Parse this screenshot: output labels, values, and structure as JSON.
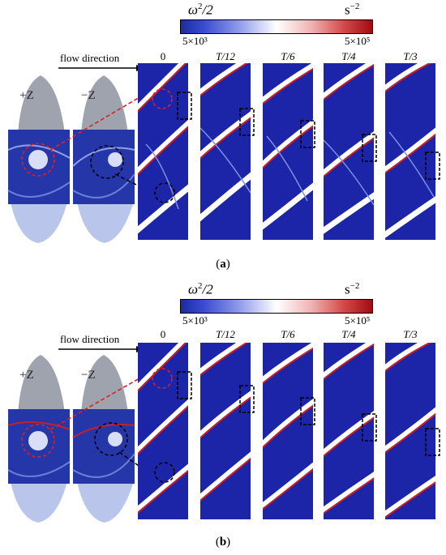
{
  "colorbar": {
    "quantity": "ω²/2",
    "quantity_base": "ω",
    "quantity_exp": "2",
    "quantity_rest": "/2",
    "unit_base": "s",
    "unit_exp": "−2",
    "min_label": "5×10³",
    "max_label": "5×10⁵",
    "colors": [
      "#1c2b9e",
      "#ffffff",
      "#a00c12"
    ]
  },
  "flow_label": "flow direction",
  "time_labels": [
    "0",
    "T/12",
    "T/6",
    "T/4",
    "T/3"
  ],
  "views": {
    "plus": "+Z",
    "minus": "−Z"
  },
  "panels": [
    {
      "id": "a",
      "caption_open": "(",
      "caption_letter": "a",
      "caption_close": ")"
    },
    {
      "id": "b",
      "caption_open": "(",
      "caption_letter": "b",
      "caption_close": ")"
    }
  ]
}
